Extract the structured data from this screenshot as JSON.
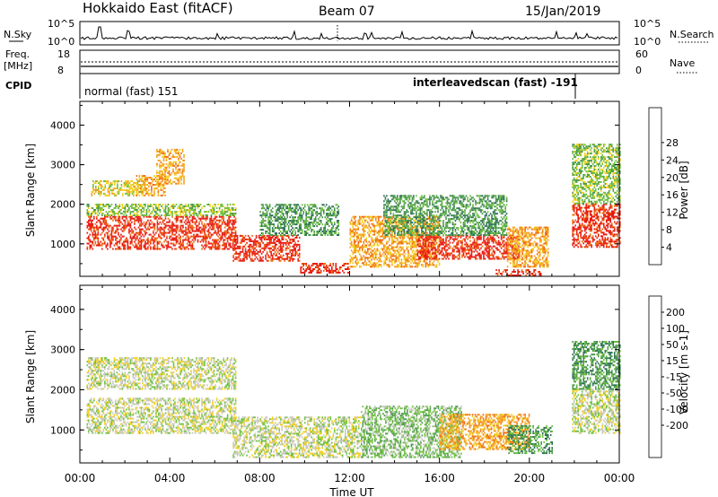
{
  "header": {
    "site": "Hokkaido East (fitACF)",
    "beam": "Beam 07",
    "date": "15/Jan/2019"
  },
  "strip": {
    "nsky_label": "N.Sky",
    "nsearch_label": "N.Search",
    "freq_label": "Freq.",
    "freq_unit": "[MHz]",
    "nave_label": "Nave",
    "cpid_label": "CPID",
    "left_top": "10^5",
    "left_bottom": "10^0",
    "right_top": "10^5",
    "right_bottom": "10^0",
    "freq_top": "18",
    "freq_bottom": "8",
    "nave_top": "60",
    "nave_bottom": "0",
    "cpid_1": "normal (fast) 151",
    "cpid_2": "interleavedscan (fast) -191"
  },
  "chart_data": [
    {
      "type": "heatmap",
      "name": "power",
      "ylabel": "Slant Range [km]",
      "yticks": [
        "1000",
        "2000",
        "3000",
        "4000"
      ],
      "ylim": [
        180,
        4600
      ],
      "colorbar_label": "Power [dB]",
      "colorbar_ticks": [
        "4",
        "8",
        "12",
        "16",
        "20",
        "24",
        "28"
      ],
      "colors": [
        "#1a1aff",
        "#1f3a99",
        "#2e6e5a",
        "#4a9a4a",
        "#6fc040",
        "#f2d020",
        "#f5a020",
        "#f06a10",
        "#e81a10"
      ],
      "regions": [
        {
          "t": [
            0.3,
            6.9
          ],
          "r": [
            850,
            1700
          ],
          "level": 8
        },
        {
          "t": [
            0.3,
            6.9
          ],
          "r": [
            1700,
            2000
          ],
          "level": 4
        },
        {
          "t": [
            0.5,
            2.8
          ],
          "r": [
            2200,
            2600
          ],
          "level": 5
        },
        {
          "t": [
            2.5,
            3.8
          ],
          "r": [
            2200,
            2700
          ],
          "level": 6
        },
        {
          "t": [
            3.4,
            4.6
          ],
          "r": [
            2500,
            3400
          ],
          "level": 6
        },
        {
          "t": [
            6.8,
            9.8
          ],
          "r": [
            550,
            1200
          ],
          "level": 8
        },
        {
          "t": [
            9.8,
            12.0
          ],
          "r": [
            250,
            500
          ],
          "level": 8
        },
        {
          "t": [
            8.0,
            11.5
          ],
          "r": [
            1200,
            2000
          ],
          "level": 3
        },
        {
          "t": [
            12.0,
            16.0
          ],
          "r": [
            400,
            1700
          ],
          "level": 6
        },
        {
          "t": [
            15.0,
            19.5
          ],
          "r": [
            600,
            1200
          ],
          "level": 8
        },
        {
          "t": [
            13.5,
            19.0
          ],
          "r": [
            1200,
            2200
          ],
          "level": 3
        },
        {
          "t": [
            19.0,
            20.8
          ],
          "r": [
            400,
            1400
          ],
          "level": 6
        },
        {
          "t": [
            18.5,
            20.5
          ],
          "r": [
            180,
            350
          ],
          "level": 8
        },
        {
          "t": [
            21.9,
            24.0
          ],
          "r": [
            900,
            2000
          ],
          "level": 8
        },
        {
          "t": [
            21.9,
            24.0
          ],
          "r": [
            2000,
            3500
          ],
          "level": 4
        }
      ]
    },
    {
      "type": "heatmap",
      "name": "velocity",
      "ylabel": "Slant Range [km]",
      "xlabel": "Time UT",
      "yticks": [
        "1000",
        "2000",
        "3000",
        "4000"
      ],
      "ylim": [
        180,
        4600
      ],
      "xticks": [
        "00:00",
        "04:00",
        "08:00",
        "12:00",
        "16:00",
        "20:00",
        "00:00"
      ],
      "xlim": [
        0,
        24
      ],
      "colorbar_label": "Velocity [m s-1]",
      "colorbar_ticks": [
        "200",
        "100",
        "50",
        "15",
        "-15",
        "-50",
        "-100",
        "-200"
      ],
      "colors": [
        "#1a1aff",
        "#1f3a99",
        "#2e6e5a",
        "#4a9a4a",
        "#6fc040",
        "#c8c8c0",
        "#f2d020",
        "#f5a020",
        "#f06a10",
        "#e81a10"
      ],
      "regions": [
        {
          "t": [
            0.3,
            6.9
          ],
          "r": [
            900,
            1800
          ],
          "level": 5
        },
        {
          "t": [
            0.3,
            6.9
          ],
          "r": [
            2000,
            2800
          ],
          "level": 5
        },
        {
          "t": [
            6.8,
            12.5
          ],
          "r": [
            300,
            1300
          ],
          "level": 5
        },
        {
          "t": [
            12.5,
            17.0
          ],
          "r": [
            300,
            1600
          ],
          "level": 4
        },
        {
          "t": [
            16.0,
            20.0
          ],
          "r": [
            500,
            1400
          ],
          "level": 7
        },
        {
          "t": [
            19.0,
            21.0
          ],
          "r": [
            400,
            1100
          ],
          "level": 3
        },
        {
          "t": [
            21.9,
            24.0
          ],
          "r": [
            900,
            2000
          ],
          "level": 5
        },
        {
          "t": [
            21.9,
            24.0
          ],
          "r": [
            2000,
            3200
          ],
          "level": 3
        }
      ]
    }
  ]
}
